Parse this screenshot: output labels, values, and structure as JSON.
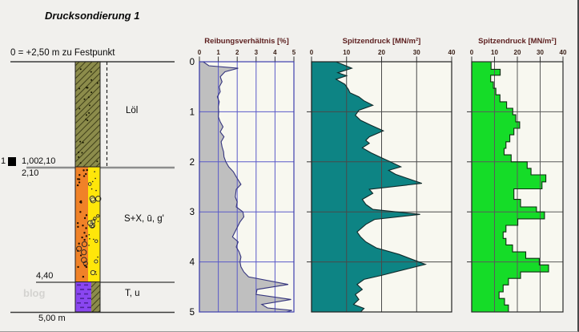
{
  "page": {
    "title": "Drucksondierung 1",
    "datum_label": "0 = +2,50 m zu Festpunkt",
    "base_label": "5,00 m",
    "watermark": "blog"
  },
  "borehole": {
    "layers": [
      {
        "label": "Löl",
        "from_m": 0.0,
        "to_m": 2.1,
        "color": "#8c8c4b",
        "pattern": "diagonal-hatch-dots"
      },
      {
        "label": "S+X, ū, g'",
        "from_m": 2.1,
        "to_m": 4.4,
        "color_left": "#f08228",
        "color_right": "#ffe60a",
        "pattern": "gravel-stones-dots"
      },
      {
        "label": "T, u",
        "from_m": 4.4,
        "to_m": 5.0,
        "color_left": "#8a46f0",
        "color_right": "#8c8c4b",
        "pattern": "clay-dashes"
      }
    ],
    "depth_marks": {
      "layer1_bottom": "2,10",
      "layer2_bottom": "4,40"
    },
    "sample_marker": {
      "number": "1",
      "value_a": "1,00",
      "value_b": "2,10"
    }
  },
  "chart_data": [
    {
      "type": "area",
      "title": "Reibungsverhältnis [%]",
      "xlim": [
        0,
        5
      ],
      "xticks": [
        0,
        1,
        2,
        3,
        4,
        5
      ],
      "xtick_labels": [
        "0",
        "1",
        "2",
        "3",
        "4",
        "5"
      ],
      "depth_range_m": [
        0,
        5
      ],
      "depth_tick_labels": [
        "0",
        "1",
        "2",
        "3",
        "4",
        "5"
      ],
      "grid": true,
      "fill_color": "#bfbfbf",
      "stroke_color": "#35357e",
      "grid_color": "#5a5ac8",
      "frame_color": "#3f3fae",
      "points_depth_value": [
        [
          0,
          0.2
        ],
        [
          0.08,
          0.5
        ],
        [
          0.13,
          2.05
        ],
        [
          0.2,
          1.35
        ],
        [
          0.3,
          1.1
        ],
        [
          0.4,
          1.2
        ],
        [
          0.5,
          1.05
        ],
        [
          0.6,
          1.1
        ],
        [
          0.7,
          0.95
        ],
        [
          0.8,
          1.05
        ],
        [
          0.9,
          1.0
        ],
        [
          1.0,
          1.02
        ],
        [
          1.1,
          1.0
        ],
        [
          1.2,
          1.1
        ],
        [
          1.3,
          1.25
        ],
        [
          1.4,
          1.1
        ],
        [
          1.5,
          1.3
        ],
        [
          1.6,
          1.15
        ],
        [
          1.7,
          1.2
        ],
        [
          1.8,
          1.28
        ],
        [
          1.9,
          1.3
        ],
        [
          2.0,
          1.4
        ],
        [
          2.1,
          1.55
        ],
        [
          2.2,
          1.8
        ],
        [
          2.3,
          1.95
        ],
        [
          2.45,
          2.2
        ],
        [
          2.55,
          1.95
        ],
        [
          2.7,
          1.9
        ],
        [
          2.8,
          2.0
        ],
        [
          2.9,
          1.95
        ],
        [
          3.0,
          2.3
        ],
        [
          3.1,
          2.35
        ],
        [
          3.2,
          2.15
        ],
        [
          3.35,
          1.95
        ],
        [
          3.5,
          1.75
        ],
        [
          3.6,
          2.05
        ],
        [
          3.7,
          1.95
        ],
        [
          3.8,
          2.1
        ],
        [
          3.9,
          2.2
        ],
        [
          4.0,
          2.15
        ],
        [
          4.1,
          2.2
        ],
        [
          4.2,
          2.35
        ],
        [
          4.3,
          2.6
        ],
        [
          4.45,
          4.7
        ],
        [
          4.55,
          3.05
        ],
        [
          4.65,
          3.0
        ],
        [
          4.75,
          4.85
        ],
        [
          4.85,
          3.3
        ],
        [
          4.92,
          3.6
        ],
        [
          4.97,
          4.9
        ],
        [
          5.0,
          4.6
        ]
      ]
    },
    {
      "type": "area",
      "title": "Spitzendruck [MN/m²]",
      "xlim": [
        0,
        40
      ],
      "xticks": [
        0,
        10,
        20,
        30,
        40
      ],
      "xtick_labels": [
        "0",
        "10",
        "20",
        "30",
        "40"
      ],
      "depth_range_m": [
        0,
        5
      ],
      "grid": true,
      "fill_color": "#0d8484",
      "stroke_color": "#102a2a",
      "grid_color": "#4a4a4a",
      "frame_color": "#222222",
      "points_depth_value": [
        [
          0,
          7
        ],
        [
          0.13,
          11.5
        ],
        [
          0.22,
          7.5
        ],
        [
          0.28,
          10
        ],
        [
          0.35,
          7
        ],
        [
          0.45,
          9.5
        ],
        [
          0.55,
          10.5
        ],
        [
          0.62,
          11
        ],
        [
          0.7,
          13.5
        ],
        [
          0.78,
          15
        ],
        [
          0.87,
          17.5
        ],
        [
          0.97,
          13.5
        ],
        [
          1.07,
          12.5
        ],
        [
          1.17,
          14
        ],
        [
          1.27,
          17
        ],
        [
          1.38,
          20.5
        ],
        [
          1.5,
          16.5
        ],
        [
          1.57,
          15.5
        ],
        [
          1.63,
          16.5
        ],
        [
          1.72,
          14.5
        ],
        [
          1.82,
          17
        ],
        [
          1.92,
          20
        ],
        [
          2.0,
          22.5
        ],
        [
          2.1,
          25.5
        ],
        [
          2.17,
          22
        ],
        [
          2.25,
          24
        ],
        [
          2.43,
          31.5
        ],
        [
          2.55,
          16.5
        ],
        [
          2.63,
          17.5
        ],
        [
          2.75,
          14.5
        ],
        [
          2.85,
          15.5
        ],
        [
          2.95,
          17.5
        ],
        [
          3.05,
          31
        ],
        [
          3.15,
          18
        ],
        [
          3.25,
          15.5
        ],
        [
          3.4,
          13
        ],
        [
          3.5,
          14
        ],
        [
          3.6,
          15.5
        ],
        [
          3.72,
          18.5
        ],
        [
          3.85,
          25
        ],
        [
          4.05,
          32.5
        ],
        [
          4.18,
          25
        ],
        [
          4.27,
          20
        ],
        [
          4.35,
          15
        ],
        [
          4.45,
          13
        ],
        [
          4.55,
          14.5
        ],
        [
          4.65,
          12.5
        ],
        [
          4.75,
          13.5
        ],
        [
          4.85,
          12
        ],
        [
          4.93,
          15
        ],
        [
          5.0,
          14
        ]
      ]
    },
    {
      "type": "step",
      "title": "Spitzendruck [MN/m²]",
      "xlim": [
        0,
        40
      ],
      "xticks": [
        0,
        10,
        20,
        30,
        40
      ],
      "xtick_labels": [
        "0",
        "10",
        "20",
        "30",
        "40"
      ],
      "depth_range_m": [
        0,
        5
      ],
      "grid": true,
      "fill_color": "#15dc28",
      "stroke_color": "#0d2e10",
      "grid_color": "#5a5a5a",
      "frame_color": "#2a2a2a",
      "steps_depthtop_value": [
        [
          0.0,
          8.5
        ],
        [
          0.15,
          12.5
        ],
        [
          0.27,
          8.3
        ],
        [
          0.4,
          9.5
        ],
        [
          0.53,
          10.6
        ],
        [
          0.66,
          12.4
        ],
        [
          0.8,
          15.3
        ],
        [
          0.93,
          18.0
        ],
        [
          1.06,
          19.3
        ],
        [
          1.2,
          21.0
        ],
        [
          1.33,
          18.5
        ],
        [
          1.46,
          16.7
        ],
        [
          1.6,
          15.0
        ],
        [
          1.73,
          14.2
        ],
        [
          1.86,
          17.3
        ],
        [
          2.0,
          24.3
        ],
        [
          2.13,
          26.0
        ],
        [
          2.26,
          32.5
        ],
        [
          2.4,
          30.8
        ],
        [
          2.54,
          18.5
        ],
        [
          2.75,
          21.4
        ],
        [
          2.9,
          28.4
        ],
        [
          3.0,
          31.9
        ],
        [
          3.14,
          20.2
        ],
        [
          3.27,
          15.0
        ],
        [
          3.4,
          13.8
        ],
        [
          3.53,
          15.0
        ],
        [
          3.66,
          17.9
        ],
        [
          3.8,
          23.7
        ],
        [
          3.93,
          29.6
        ],
        [
          4.06,
          33.7
        ],
        [
          4.2,
          21.4
        ],
        [
          4.33,
          16.1
        ],
        [
          4.46,
          13.8
        ],
        [
          4.6,
          12.0
        ],
        [
          4.73,
          14.4
        ],
        [
          4.86,
          16.1
        ]
      ]
    }
  ]
}
